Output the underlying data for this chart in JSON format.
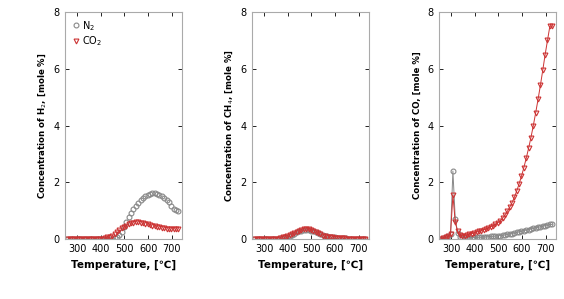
{
  "panel1_ylabel": "Concentration of H$_2$, [mole %]",
  "panel2_ylabel": "Concentration of CH$_4$, [mole %]",
  "panel3_ylabel": "Concentration of CO, [mole %]",
  "xlabel": "Temperature, [℃]",
  "ylim": [
    0,
    8
  ],
  "yticks": [
    0,
    2,
    4,
    6,
    8
  ],
  "xlim": [
    248,
    742
  ],
  "xticks": [
    300,
    400,
    500,
    600,
    700
  ],
  "n2_color": "#888888",
  "co2_color": "#cc3333",
  "h2_n2_x": [
    258,
    268,
    278,
    288,
    298,
    308,
    318,
    328,
    338,
    348,
    358,
    368,
    378,
    388,
    398,
    408,
    418,
    428,
    438,
    448,
    458,
    468,
    478,
    488,
    498,
    508,
    518,
    528,
    538,
    548,
    558,
    568,
    578,
    588,
    598,
    608,
    618,
    628,
    638,
    648,
    658,
    668,
    678,
    688,
    698,
    708,
    718,
    728
  ],
  "h2_n2_y": [
    0.0,
    0.0,
    0.0,
    0.0,
    0.0,
    0.0,
    0.0,
    0.0,
    0.0,
    0.0,
    0.0,
    0.0,
    0.0,
    0.0,
    0.0,
    0.0,
    0.0,
    0.0,
    0.0,
    0.0,
    0.04,
    0.08,
    0.14,
    0.25,
    0.42,
    0.62,
    0.78,
    0.92,
    1.05,
    1.18,
    1.28,
    1.38,
    1.46,
    1.52,
    1.56,
    1.6,
    1.62,
    1.62,
    1.6,
    1.56,
    1.52,
    1.46,
    1.38,
    1.3,
    1.18,
    1.08,
    1.02,
    0.98
  ],
  "h2_co2_x": [
    258,
    268,
    278,
    288,
    298,
    308,
    318,
    328,
    338,
    348,
    358,
    368,
    378,
    388,
    398,
    408,
    418,
    428,
    438,
    448,
    458,
    468,
    478,
    488,
    498,
    508,
    518,
    528,
    538,
    548,
    558,
    568,
    578,
    588,
    598,
    608,
    618,
    628,
    638,
    648,
    658,
    668,
    678,
    688,
    698,
    708,
    718,
    728
  ],
  "h2_co2_y": [
    0.0,
    0.0,
    0.0,
    0.0,
    0.0,
    0.0,
    0.0,
    0.0,
    0.0,
    0.0,
    0.0,
    0.0,
    0.0,
    0.0,
    0.0,
    0.02,
    0.04,
    0.06,
    0.08,
    0.12,
    0.18,
    0.25,
    0.32,
    0.38,
    0.44,
    0.48,
    0.52,
    0.56,
    0.58,
    0.6,
    0.6,
    0.58,
    0.56,
    0.54,
    0.52,
    0.5,
    0.48,
    0.46,
    0.44,
    0.42,
    0.4,
    0.38,
    0.37,
    0.36,
    0.35,
    0.35,
    0.35,
    0.35
  ],
  "ch4_n2_x": [
    258,
    268,
    278,
    288,
    298,
    308,
    318,
    328,
    338,
    348,
    358,
    368,
    378,
    388,
    398,
    408,
    418,
    428,
    438,
    448,
    458,
    468,
    478,
    488,
    498,
    508,
    518,
    528,
    538,
    548,
    558,
    568,
    578,
    588,
    598,
    608,
    618,
    628,
    638,
    648,
    658,
    668,
    678,
    688,
    698,
    708,
    718,
    728
  ],
  "ch4_n2_y": [
    0.0,
    0.0,
    0.0,
    0.0,
    0.0,
    0.0,
    0.0,
    0.0,
    0.0,
    0.01,
    0.02,
    0.03,
    0.05,
    0.07,
    0.09,
    0.12,
    0.16,
    0.2,
    0.24,
    0.28,
    0.3,
    0.32,
    0.33,
    0.32,
    0.3,
    0.28,
    0.25,
    0.22,
    0.18,
    0.15,
    0.12,
    0.1,
    0.08,
    0.07,
    0.06,
    0.05,
    0.04,
    0.04,
    0.03,
    0.03,
    0.02,
    0.02,
    0.02,
    0.01,
    0.01,
    0.01,
    0.01,
    0.01
  ],
  "ch4_co2_x": [
    258,
    268,
    278,
    288,
    298,
    308,
    318,
    328,
    338,
    348,
    358,
    368,
    378,
    388,
    398,
    408,
    418,
    428,
    438,
    448,
    458,
    468,
    478,
    488,
    498,
    508,
    518,
    528,
    538,
    548,
    558,
    568,
    578,
    588,
    598,
    608,
    618,
    628,
    638,
    648,
    658,
    668,
    678,
    688,
    698,
    708,
    718,
    728
  ],
  "ch4_co2_y": [
    0.0,
    0.0,
    0.0,
    0.0,
    0.0,
    0.0,
    0.0,
    0.0,
    0.0,
    0.01,
    0.02,
    0.04,
    0.06,
    0.08,
    0.11,
    0.14,
    0.18,
    0.22,
    0.26,
    0.3,
    0.33,
    0.35,
    0.36,
    0.35,
    0.32,
    0.29,
    0.25,
    0.21,
    0.17,
    0.13,
    0.1,
    0.08,
    0.07,
    0.06,
    0.05,
    0.04,
    0.04,
    0.03,
    0.03,
    0.02,
    0.02,
    0.02,
    0.01,
    0.01,
    0.01,
    0.01,
    0.01,
    0.0
  ],
  "co_n2_x": [
    258,
    268,
    278,
    288,
    298,
    308,
    318,
    328,
    338,
    348,
    358,
    368,
    378,
    388,
    398,
    408,
    418,
    428,
    438,
    448,
    458,
    468,
    478,
    488,
    498,
    508,
    518,
    528,
    538,
    548,
    558,
    568,
    578,
    588,
    598,
    608,
    618,
    628,
    638,
    648,
    658,
    668,
    678,
    688,
    698,
    708,
    718,
    728
  ],
  "co_n2_y": [
    0.02,
    0.04,
    0.06,
    0.1,
    0.18,
    2.4,
    0.7,
    0.22,
    0.08,
    0.05,
    0.04,
    0.04,
    0.05,
    0.05,
    0.06,
    0.06,
    0.07,
    0.07,
    0.08,
    0.08,
    0.09,
    0.1,
    0.1,
    0.11,
    0.12,
    0.13,
    0.14,
    0.15,
    0.17,
    0.18,
    0.2,
    0.22,
    0.24,
    0.26,
    0.28,
    0.3,
    0.32,
    0.34,
    0.36,
    0.38,
    0.4,
    0.42,
    0.44,
    0.46,
    0.48,
    0.5,
    0.52,
    0.52
  ],
  "co_co2_x": [
    258,
    268,
    278,
    288,
    298,
    308,
    318,
    328,
    338,
    348,
    358,
    368,
    378,
    388,
    398,
    408,
    418,
    428,
    438,
    448,
    458,
    468,
    478,
    488,
    498,
    508,
    518,
    528,
    538,
    548,
    558,
    568,
    578,
    588,
    598,
    608,
    618,
    628,
    638,
    648,
    658,
    668,
    678,
    688,
    698,
    708,
    718,
    728
  ],
  "co_co2_y": [
    0.02,
    0.04,
    0.06,
    0.1,
    0.18,
    1.55,
    0.6,
    0.28,
    0.14,
    0.12,
    0.13,
    0.15,
    0.18,
    0.2,
    0.22,
    0.25,
    0.28,
    0.3,
    0.33,
    0.36,
    0.4,
    0.44,
    0.48,
    0.53,
    0.58,
    0.65,
    0.74,
    0.85,
    0.98,
    1.12,
    1.28,
    1.48,
    1.7,
    1.95,
    2.22,
    2.52,
    2.85,
    3.2,
    3.58,
    4.0,
    4.45,
    4.92,
    5.42,
    5.95,
    6.5,
    7.0,
    7.5,
    7.5
  ]
}
